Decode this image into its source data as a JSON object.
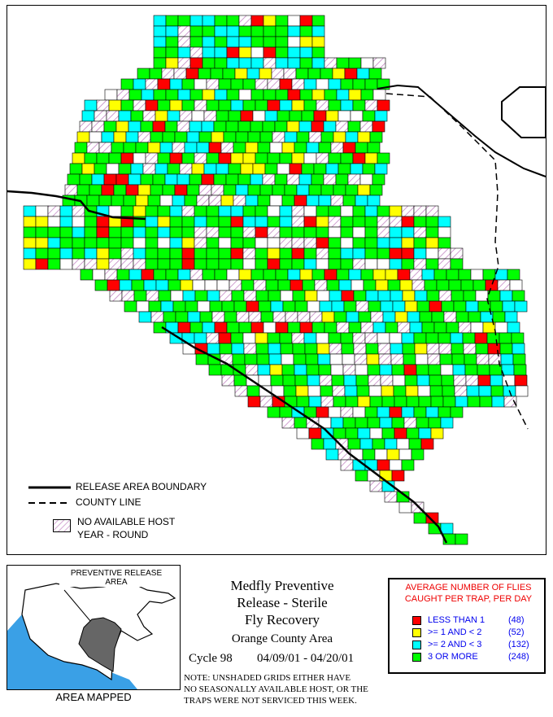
{
  "map": {
    "legend": {
      "release_boundary": "RELEASE AREA BOUNDARY",
      "county_line": "COUNTY LINE",
      "no_host_line1": "NO AVAILABLE HOST",
      "no_host_line2": "YEAR - ROUND"
    }
  },
  "locator": {
    "label_line1": "PREVENTIVE RELEASE",
    "label_line2": "AREA",
    "caption": "AREA MAPPED"
  },
  "title": {
    "line1": "Medfly Preventive",
    "line2": "Release - Sterile",
    "line3": "Fly Recovery",
    "line4": "Orange County Area",
    "cycle": "Cycle 98",
    "dates": "04/09/01 - 04/20/01"
  },
  "note": {
    "line1": "NOTE: UNSHADED GRIDS EITHER HAVE",
    "line2": "NO SEASONALLY AVAILABLE HOST, OR THE",
    "line3": "TRAPS WERE NOT SERVICED THIS WEEK."
  },
  "flies_legend": {
    "title_line1": "AVERAGE NUMBER OF FLIES",
    "title_line2": "CAUGHT PER TRAP, PER DAY",
    "items": [
      {
        "label": "LESS THAN 1",
        "count": "(48)",
        "color": "#ff0000"
      },
      {
        "label": ">= 1 AND < 2",
        "count": "(52)",
        "color": "#ffff00"
      },
      {
        "label": ">= 2 AND < 3",
        "count": "(132)",
        "color": "#00ffff"
      },
      {
        "label": "3 OR MORE",
        "count": "(248)",
        "color": "#00ff00"
      }
    ]
  },
  "colors": {
    "red": "#ff0000",
    "yellow": "#ffff00",
    "cyan": "#00ffff",
    "green": "#00ff00",
    "hatch": "#cc88cc"
  }
}
